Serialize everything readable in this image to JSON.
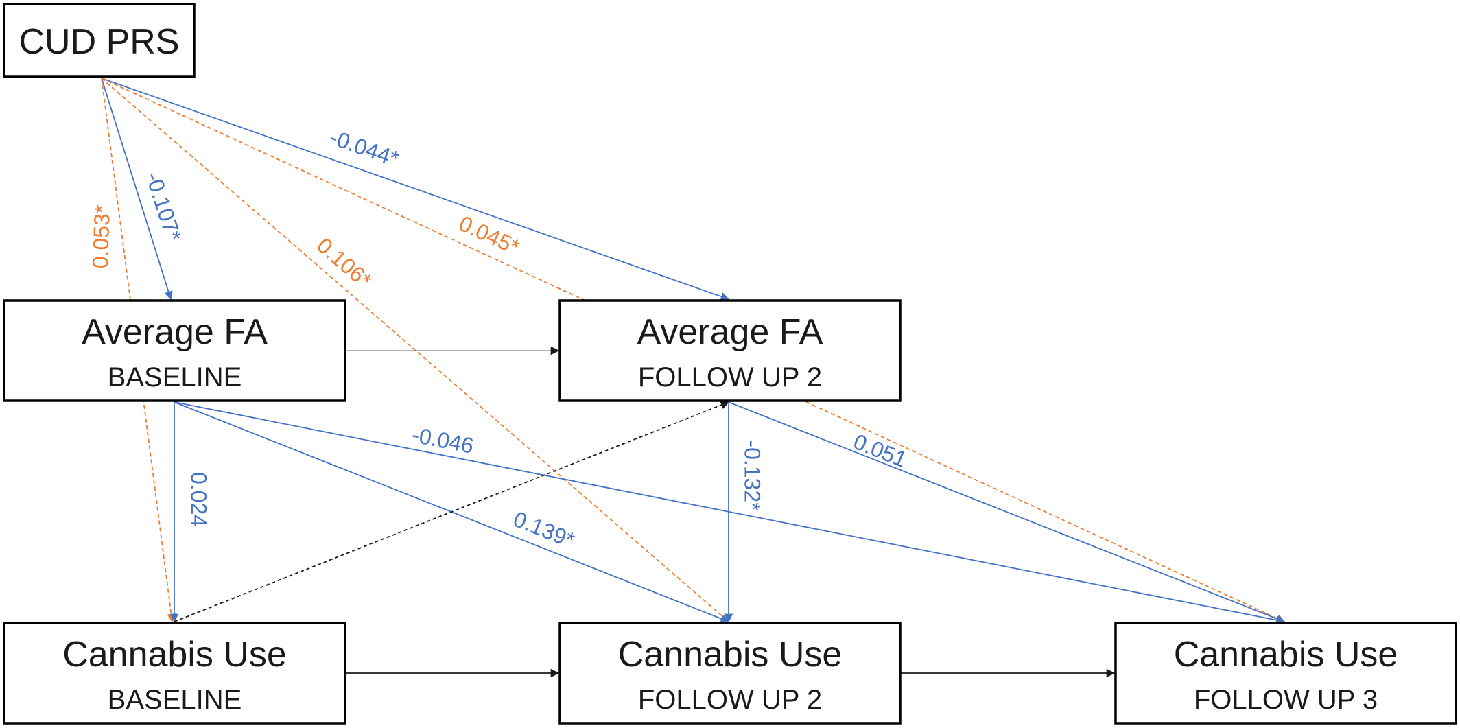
{
  "colors": {
    "blue": "#4472c4",
    "orange": "#ed7d31",
    "gray": "#a6a6a6",
    "black": "#1a1a1a"
  },
  "nodes": {
    "cud_prs": {
      "title": "CUD PRS",
      "subtitle": ""
    },
    "fa_baseline": {
      "title": "Average FA",
      "subtitle": "BASELINE"
    },
    "fa_followup2": {
      "title": "Average FA",
      "subtitle": "FOLLOW UP 2"
    },
    "cu_baseline": {
      "title": "Cannabis Use",
      "subtitle": "BASELINE"
    },
    "cu_followup2": {
      "title": "Cannabis Use",
      "subtitle": "FOLLOW UP 2"
    },
    "cu_followup3": {
      "title": "Cannabis Use",
      "subtitle": "FOLLOW UP 3"
    }
  },
  "edges": [
    {
      "from": "cud_prs",
      "to": "fa_baseline",
      "label": "-0.107*",
      "color": "blue",
      "style": "solid"
    },
    {
      "from": "cud_prs",
      "to": "fa_followup2",
      "label": "-0.044*",
      "color": "blue",
      "style": "solid"
    },
    {
      "from": "cud_prs",
      "to": "cu_baseline",
      "label": "0.053*",
      "color": "orange",
      "style": "dashed"
    },
    {
      "from": "cud_prs",
      "to": "cu_followup2",
      "label": "0.106*",
      "color": "orange",
      "style": "dashed"
    },
    {
      "from": "cud_prs",
      "to": "cu_followup3",
      "label": "0.045*",
      "color": "orange",
      "style": "dashed"
    },
    {
      "from": "fa_baseline",
      "to": "fa_followup2",
      "label": "",
      "color": "gray",
      "style": "solid"
    },
    {
      "from": "fa_baseline",
      "to": "cu_baseline",
      "label": "0.024",
      "color": "blue",
      "style": "solid"
    },
    {
      "from": "fa_baseline",
      "to": "cu_followup2",
      "label": "0.139*",
      "color": "blue",
      "style": "solid"
    },
    {
      "from": "fa_baseline",
      "to": "cu_followup3",
      "label": "-0.046",
      "color": "blue",
      "style": "solid"
    },
    {
      "from": "cu_baseline",
      "to": "fa_followup2",
      "label": "",
      "color": "black",
      "style": "dashed"
    },
    {
      "from": "cu_baseline",
      "to": "cu_followup2",
      "label": "",
      "color": "black",
      "style": "solid"
    },
    {
      "from": "fa_followup2",
      "to": "cu_followup2",
      "label": "-0.132*",
      "color": "blue",
      "style": "solid"
    },
    {
      "from": "fa_followup2",
      "to": "cu_followup3",
      "label": "0.051",
      "color": "blue",
      "style": "solid"
    },
    {
      "from": "cu_followup2",
      "to": "cu_followup3",
      "label": "",
      "color": "black",
      "style": "solid"
    }
  ]
}
